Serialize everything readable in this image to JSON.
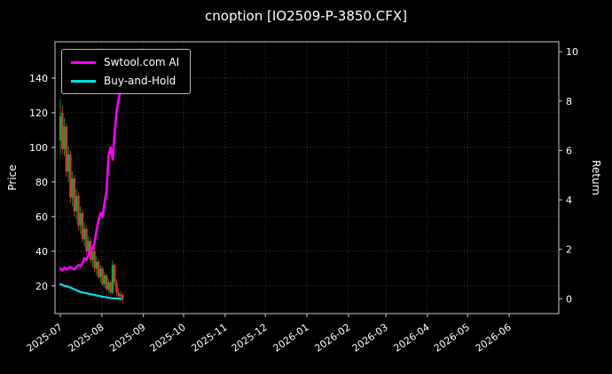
{
  "title": "cnoption [IO2509-P-3850.CFX]",
  "chart_data": {
    "type": "candlestick+line",
    "title": "cnoption [IO2509-P-3850.CFX]",
    "background": "#000000",
    "ylabel_left": "Price",
    "ylabel_right": "Return",
    "grid": {
      "on": true,
      "style": "dotted",
      "color": "#ffffff",
      "opacity": 0.32
    },
    "x_domain_days": [
      -4,
      372
    ],
    "left_axis": {
      "range": [
        4,
        161
      ],
      "ticks": [
        20,
        40,
        60,
        80,
        100,
        120,
        140
      ]
    },
    "right_axis": {
      "range": [
        -0.6,
        10.4
      ],
      "ticks": [
        0,
        2,
        4,
        6,
        8,
        10
      ]
    },
    "x_ticks": {
      "days": [
        0,
        31,
        62,
        92,
        123,
        153,
        184,
        215,
        243,
        274,
        304,
        335
      ],
      "labels": [
        "2025-07",
        "2025-08",
        "2025-09",
        "2025-10",
        "2025-11",
        "2025-12",
        "2026-01",
        "2026-02",
        "2026-03",
        "2026-04",
        "2026-05",
        "2026-06"
      ]
    },
    "legend": {
      "position": "upper-left",
      "items": [
        {
          "label": "Swtool.com AI",
          "color": "#ff00ff"
        },
        {
          "label": "Buy-and-Hold",
          "color": "#00e0e8"
        }
      ]
    },
    "candles": {
      "up_color": "#17a32b",
      "down_color": "#cc3a3a",
      "columns": [
        "day",
        "open",
        "high",
        "low",
        "close"
      ],
      "data": [
        [
          0,
          104,
          128,
          96,
          118
        ],
        [
          1.5,
          120,
          124,
          96,
          99
        ],
        [
          3,
          99,
          117,
          95,
          112
        ],
        [
          4.5,
          112,
          114,
          83,
          86
        ],
        [
          6,
          86,
          101,
          80,
          96
        ],
        [
          7.5,
          96,
          98,
          68,
          71
        ],
        [
          9,
          71,
          86,
          66,
          82
        ],
        [
          10.5,
          82,
          84,
          60,
          63
        ],
        [
          12,
          63,
          76,
          58,
          72
        ],
        [
          13.5,
          72,
          74,
          52,
          55
        ],
        [
          15,
          55,
          66,
          50,
          62
        ],
        [
          16.5,
          62,
          64,
          45,
          47
        ],
        [
          18,
          47,
          57,
          43,
          53
        ],
        [
          19.5,
          53,
          55,
          38,
          40
        ],
        [
          21,
          40,
          49,
          36,
          46
        ],
        [
          22.5,
          46,
          48,
          33,
          35
        ],
        [
          24,
          35,
          43,
          31,
          40
        ],
        [
          25.5,
          40,
          42,
          28,
          30
        ],
        [
          27,
          30,
          37,
          26,
          34
        ],
        [
          28.5,
          34,
          35,
          24,
          25
        ],
        [
          30,
          25,
          32,
          22,
          30
        ],
        [
          31.5,
          30,
          31,
          20,
          21
        ],
        [
          33,
          21,
          28,
          19,
          26
        ],
        [
          34.5,
          26,
          27,
          17,
          18
        ],
        [
          36,
          18,
          24,
          16,
          22
        ],
        [
          37.5,
          22,
          23,
          15,
          16
        ],
        [
          39,
          16,
          35,
          15,
          32
        ],
        [
          40.5,
          32,
          33,
          20,
          22
        ],
        [
          42,
          22,
          24,
          14,
          16
        ],
        [
          43.5,
          16,
          19,
          12,
          14
        ],
        [
          45,
          14,
          17,
          11,
          15
        ],
        [
          46.5,
          15,
          16,
          10,
          12
        ]
      ]
    },
    "series": [
      {
        "name": "Swtool.com AI",
        "color": "#ff00ff",
        "width": 2.6,
        "axis": "left",
        "points": [
          [
            0,
            30
          ],
          [
            1.5,
            29
          ],
          [
            3,
            30.5
          ],
          [
            4.5,
            29.5
          ],
          [
            6,
            30
          ],
          [
            7.5,
            31
          ],
          [
            9,
            30
          ],
          [
            10.5,
            29.5
          ],
          [
            12,
            31
          ],
          [
            13.5,
            32
          ],
          [
            15,
            31.5
          ],
          [
            16.5,
            33
          ],
          [
            18,
            36
          ],
          [
            19.5,
            35
          ],
          [
            21,
            38
          ],
          [
            22.5,
            42
          ],
          [
            24,
            41
          ],
          [
            25.5,
            45
          ],
          [
            27,
            52
          ],
          [
            28.5,
            58
          ],
          [
            30,
            62
          ],
          [
            31.5,
            60
          ],
          [
            33,
            68
          ],
          [
            34.5,
            75
          ],
          [
            36,
            95
          ],
          [
            37.5,
            100
          ],
          [
            39,
            93
          ],
          [
            40.5,
            108
          ],
          [
            42,
            121
          ],
          [
            43.5,
            128
          ],
          [
            45,
            133
          ]
        ]
      },
      {
        "name": "Buy-and-Hold",
        "color": "#00e0e8",
        "width": 2.2,
        "axis": "left",
        "points": [
          [
            0,
            21
          ],
          [
            1.5,
            20.5
          ],
          [
            3,
            20
          ],
          [
            4.5,
            19.8
          ],
          [
            6,
            19.5
          ],
          [
            7.5,
            19
          ],
          [
            9,
            18.5
          ],
          [
            10.5,
            18
          ],
          [
            12,
            17.5
          ],
          [
            13.5,
            17
          ],
          [
            15,
            16.5
          ],
          [
            16.5,
            16.2
          ],
          [
            18,
            16
          ],
          [
            19.5,
            15.8
          ],
          [
            21,
            15.5
          ],
          [
            22.5,
            15.2
          ],
          [
            24,
            15
          ],
          [
            25.5,
            14.8
          ],
          [
            27,
            14.5
          ],
          [
            28.5,
            14.2
          ],
          [
            30,
            14
          ],
          [
            31.5,
            13.8
          ],
          [
            33,
            13.6
          ],
          [
            34.5,
            13.4
          ],
          [
            36,
            13.2
          ],
          [
            37.5,
            13
          ],
          [
            39,
            12.9
          ],
          [
            40.5,
            12.8
          ],
          [
            42,
            12.7
          ],
          [
            43.5,
            12.6
          ],
          [
            45,
            12.5
          ]
        ]
      }
    ]
  }
}
